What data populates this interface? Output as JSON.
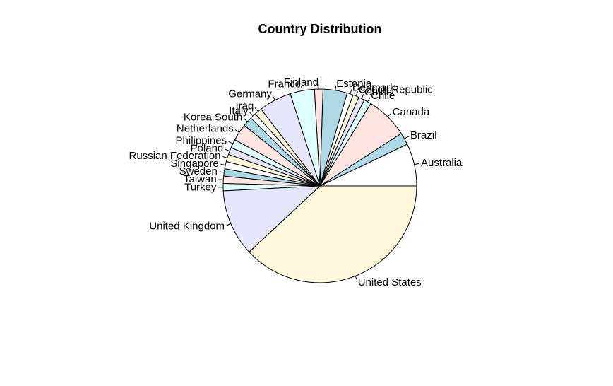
{
  "chart_data": {
    "type": "pie",
    "title": "Country Distribution",
    "slices": [
      {
        "label": "United States",
        "value": 188,
        "color": "#FFF8DC"
      },
      {
        "label": "Australia",
        "value": 35,
        "color": "#FFFFFF"
      },
      {
        "label": "Brazil",
        "value": 10,
        "color": "#ADD8E6"
      },
      {
        "label": "Canada",
        "value": 35,
        "color": "#FFE4E1"
      },
      {
        "label": "Chile",
        "value": 6,
        "color": "#E0FFFF"
      },
      {
        "label": "China",
        "value": 5,
        "color": "#E6E6FA"
      },
      {
        "label": "Czech Republic",
        "value": 5,
        "color": "#FFF8DC"
      },
      {
        "label": "Denmark",
        "value": 5,
        "color": "#FFFFFF"
      },
      {
        "label": "Estonia",
        "value": 20,
        "color": "#ADD8E6"
      },
      {
        "label": "Finland",
        "value": 7,
        "color": "#FFE4E1"
      },
      {
        "label": "France",
        "value": 20,
        "color": "#E0FFFF"
      },
      {
        "label": "Germany",
        "value": 27,
        "color": "#E6E6FA"
      },
      {
        "label": "Iraq",
        "value": 6,
        "color": "#FFF8DC"
      },
      {
        "label": "Italy",
        "value": 5,
        "color": "#FFFFFF"
      },
      {
        "label": "Korea South",
        "value": 8,
        "color": "#ADD8E6"
      },
      {
        "label": "Netherlands",
        "value": 14,
        "color": "#FFE4E1"
      },
      {
        "label": "Philippines",
        "value": 7,
        "color": "#E0FFFF"
      },
      {
        "label": "Poland",
        "value": 6,
        "color": "#E6E6FA"
      },
      {
        "label": "Russian Federation",
        "value": 6,
        "color": "#FFF8DC"
      },
      {
        "label": "Singapore",
        "value": 6,
        "color": "#FFFFFF"
      },
      {
        "label": "Sweden",
        "value": 6,
        "color": "#ADD8E6"
      },
      {
        "label": "Taiwan",
        "value": 6,
        "color": "#FFE4E1"
      },
      {
        "label": "Turkey",
        "value": 6,
        "color": "#E0FFFF"
      },
      {
        "label": "United Kingdom",
        "value": 55,
        "color": "#E6E6FA"
      }
    ]
  }
}
